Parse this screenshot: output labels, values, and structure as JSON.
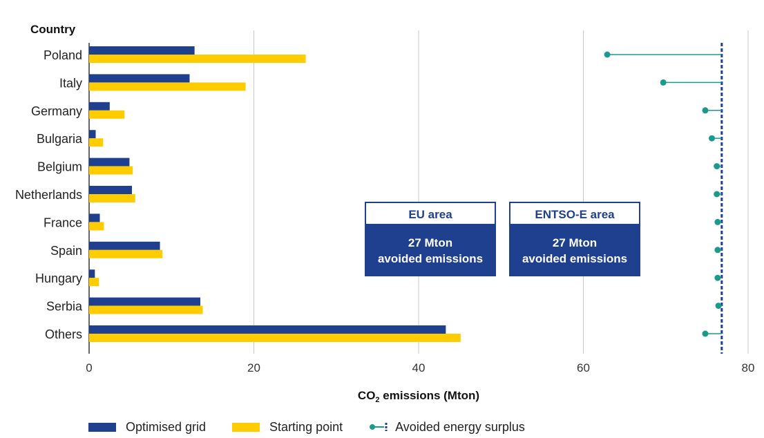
{
  "chart_data": {
    "type": "bar",
    "orientation": "horizontal",
    "ylabel": "Country",
    "xlabel_main": "CO",
    "xlabel_sub": "2",
    "xlabel_rest": " emissions (Mton)",
    "xlim": [
      0,
      80
    ],
    "xticks": [
      0,
      20,
      40,
      60,
      80
    ],
    "grid": true,
    "categories": [
      "Poland",
      "Italy",
      "Germany",
      "Bulgaria",
      "Belgium",
      "Netherlands",
      "France",
      "Spain",
      "Hungary",
      "Serbia",
      "Others"
    ],
    "series": [
      {
        "name": "Optimised grid",
        "color": "#1f3f8f",
        "values": [
          12.8,
          12.2,
          2.5,
          0.8,
          4.9,
          5.2,
          1.3,
          8.6,
          0.7,
          13.5,
          43.3
        ]
      },
      {
        "name": "Starting point",
        "color": "#ffcc00",
        "values": [
          26.3,
          19.0,
          4.3,
          1.7,
          5.3,
          5.6,
          1.8,
          8.9,
          1.2,
          13.8,
          45.1
        ]
      }
    ],
    "lollipop": {
      "name": "Avoided energy surplus",
      "color": "#1a9a8c",
      "reference": 76.8,
      "reference_color": "#1f3f8f",
      "values": [
        62.9,
        69.7,
        74.8,
        75.6,
        76.2,
        76.2,
        76.3,
        76.3,
        76.3,
        76.4,
        74.8
      ]
    },
    "legend_position": "bottom"
  },
  "boxes": [
    {
      "title": "EU area",
      "line1": "27 Mton",
      "line2": "avoided emissions"
    },
    {
      "title": "ENTSO-E area",
      "line1": "27 Mton",
      "line2": "avoided emissions"
    }
  ]
}
